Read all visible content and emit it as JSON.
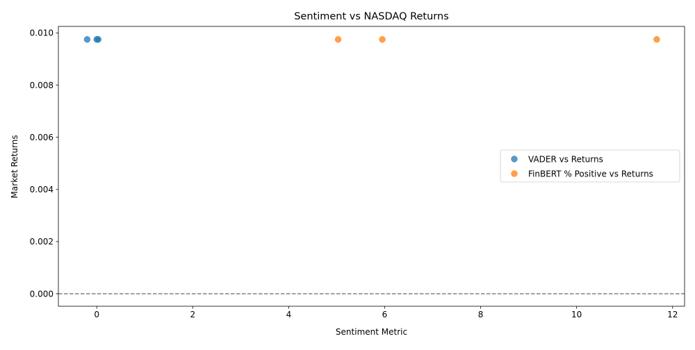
{
  "chart_data": {
    "type": "scatter",
    "title": "Sentiment vs NASDAQ Returns",
    "xlabel": "Sentiment Metric",
    "ylabel": "Market Returns",
    "xlim": [
      -0.8,
      12.25
    ],
    "ylim": [
      -0.00048,
      0.01025
    ],
    "xticks": [
      0,
      2,
      4,
      6,
      8,
      10,
      12
    ],
    "yticks": [
      0.0,
      0.002,
      0.004,
      0.006,
      0.008,
      0.01
    ],
    "ytick_labels": [
      "0.000",
      "0.002",
      "0.004",
      "0.006",
      "0.008",
      "0.010"
    ],
    "grid": false,
    "legend_position": "center-right",
    "reference_line": {
      "y": 0.0,
      "style": "dashed",
      "color": "#808080"
    },
    "series": [
      {
        "name": "VADER vs Returns",
        "color": "#1f77b4",
        "points": [
          {
            "x": -0.2,
            "y": 0.00975
          },
          {
            "x": 0.0,
            "y": 0.00975
          },
          {
            "x": 0.03,
            "y": 0.00975
          }
        ]
      },
      {
        "name": "FinBERT % Positive vs Returns",
        "color": "#ff7f0e",
        "points": [
          {
            "x": 5.03,
            "y": 0.00975
          },
          {
            "x": 5.95,
            "y": 0.00975
          },
          {
            "x": 11.67,
            "y": 0.00975
          }
        ]
      }
    ]
  }
}
